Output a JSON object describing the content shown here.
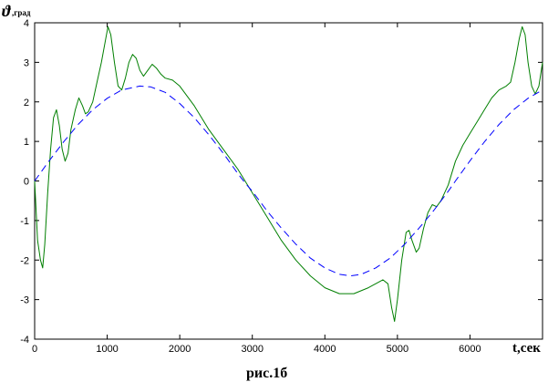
{
  "chart_data": {
    "type": "line",
    "ylabel_symbol": "ϑ",
    "ylabel_sub": ",град",
    "xlabel": "t,сек",
    "caption": "рис.1б",
    "xlim": [
      0,
      7000
    ],
    "ylim": [
      -4,
      4
    ],
    "x_ticks": [
      0,
      1000,
      2000,
      3000,
      4000,
      5000,
      6000
    ],
    "y_ticks": [
      -4,
      -3,
      -2,
      -1,
      0,
      1,
      2,
      3,
      4
    ],
    "grid": false,
    "series": [
      {
        "style": "solid",
        "color": "#007f00",
        "points": [
          [
            0,
            0
          ],
          [
            40,
            -1.5
          ],
          [
            80,
            -2.0
          ],
          [
            110,
            -2.2
          ],
          [
            140,
            -1.6
          ],
          [
            180,
            -0.3
          ],
          [
            220,
            0.8
          ],
          [
            260,
            1.6
          ],
          [
            300,
            1.8
          ],
          [
            340,
            1.4
          ],
          [
            380,
            0.8
          ],
          [
            420,
            0.5
          ],
          [
            460,
            0.7
          ],
          [
            500,
            1.3
          ],
          [
            560,
            1.8
          ],
          [
            610,
            2.1
          ],
          [
            660,
            1.9
          ],
          [
            700,
            1.7
          ],
          [
            740,
            1.75
          ],
          [
            800,
            2.0
          ],
          [
            860,
            2.5
          ],
          [
            920,
            3.0
          ],
          [
            980,
            3.6
          ],
          [
            1010,
            3.9
          ],
          [
            1050,
            3.7
          ],
          [
            1100,
            3.0
          ],
          [
            1150,
            2.4
          ],
          [
            1200,
            2.3
          ],
          [
            1250,
            2.6
          ],
          [
            1300,
            3.0
          ],
          [
            1350,
            3.2
          ],
          [
            1400,
            3.1
          ],
          [
            1450,
            2.8
          ],
          [
            1500,
            2.65
          ],
          [
            1560,
            2.8
          ],
          [
            1620,
            2.95
          ],
          [
            1680,
            2.85
          ],
          [
            1740,
            2.7
          ],
          [
            1800,
            2.6
          ],
          [
            1900,
            2.55
          ],
          [
            2000,
            2.4
          ],
          [
            2200,
            1.9
          ],
          [
            2400,
            1.3
          ],
          [
            2600,
            0.8
          ],
          [
            2800,
            0.3
          ],
          [
            3000,
            -0.3
          ],
          [
            3200,
            -0.9
          ],
          [
            3400,
            -1.5
          ],
          [
            3600,
            -2.0
          ],
          [
            3800,
            -2.4
          ],
          [
            4000,
            -2.7
          ],
          [
            4200,
            -2.85
          ],
          [
            4400,
            -2.85
          ],
          [
            4600,
            -2.7
          ],
          [
            4800,
            -2.5
          ],
          [
            4870,
            -2.6
          ],
          [
            4920,
            -3.2
          ],
          [
            4960,
            -3.55
          ],
          [
            5000,
            -3.0
          ],
          [
            5060,
            -2.0
          ],
          [
            5120,
            -1.3
          ],
          [
            5160,
            -1.25
          ],
          [
            5200,
            -1.5
          ],
          [
            5260,
            -1.8
          ],
          [
            5300,
            -1.7
          ],
          [
            5360,
            -1.2
          ],
          [
            5420,
            -0.8
          ],
          [
            5480,
            -0.6
          ],
          [
            5540,
            -0.65
          ],
          [
            5600,
            -0.5
          ],
          [
            5700,
            -0.1
          ],
          [
            5800,
            0.5
          ],
          [
            5900,
            0.9
          ],
          [
            6000,
            1.2
          ],
          [
            6100,
            1.5
          ],
          [
            6200,
            1.8
          ],
          [
            6300,
            2.1
          ],
          [
            6400,
            2.3
          ],
          [
            6500,
            2.4
          ],
          [
            6560,
            2.5
          ],
          [
            6620,
            3.0
          ],
          [
            6680,
            3.6
          ],
          [
            6720,
            3.9
          ],
          [
            6760,
            3.7
          ],
          [
            6800,
            3.0
          ],
          [
            6850,
            2.4
          ],
          [
            6900,
            2.2
          ],
          [
            6950,
            2.4
          ],
          [
            7000,
            3.0
          ]
        ]
      },
      {
        "style": "dashed",
        "color": "#0000ff",
        "amplitude": 2.4,
        "period": 5800,
        "points": [
          [
            0,
            0.0
          ],
          [
            200,
            0.51
          ],
          [
            400,
            0.99
          ],
          [
            600,
            1.43
          ],
          [
            800,
            1.8
          ],
          [
            1000,
            2.09
          ],
          [
            1200,
            2.3
          ],
          [
            1450,
            2.4
          ],
          [
            1600,
            2.38
          ],
          [
            1800,
            2.24
          ],
          [
            2000,
            1.96
          ],
          [
            2200,
            1.6
          ],
          [
            2400,
            1.17
          ],
          [
            2600,
            0.7
          ],
          [
            2800,
            0.19
          ],
          [
            2900,
            -0.05
          ],
          [
            3000,
            -0.26
          ],
          [
            3200,
            -0.75
          ],
          [
            3400,
            -1.19
          ],
          [
            3600,
            -1.6
          ],
          [
            3800,
            -1.95
          ],
          [
            4000,
            -2.2
          ],
          [
            4200,
            -2.36
          ],
          [
            4350,
            -2.4
          ],
          [
            4500,
            -2.36
          ],
          [
            4700,
            -2.2
          ],
          [
            4900,
            -1.95
          ],
          [
            5100,
            -1.6
          ],
          [
            5300,
            -1.19
          ],
          [
            5500,
            -0.75
          ],
          [
            5700,
            -0.26
          ],
          [
            5800,
            0.0
          ],
          [
            6000,
            0.51
          ],
          [
            6200,
            0.99
          ],
          [
            6400,
            1.43
          ],
          [
            6600,
            1.8
          ],
          [
            6800,
            2.09
          ],
          [
            7000,
            2.3
          ]
        ]
      }
    ]
  }
}
